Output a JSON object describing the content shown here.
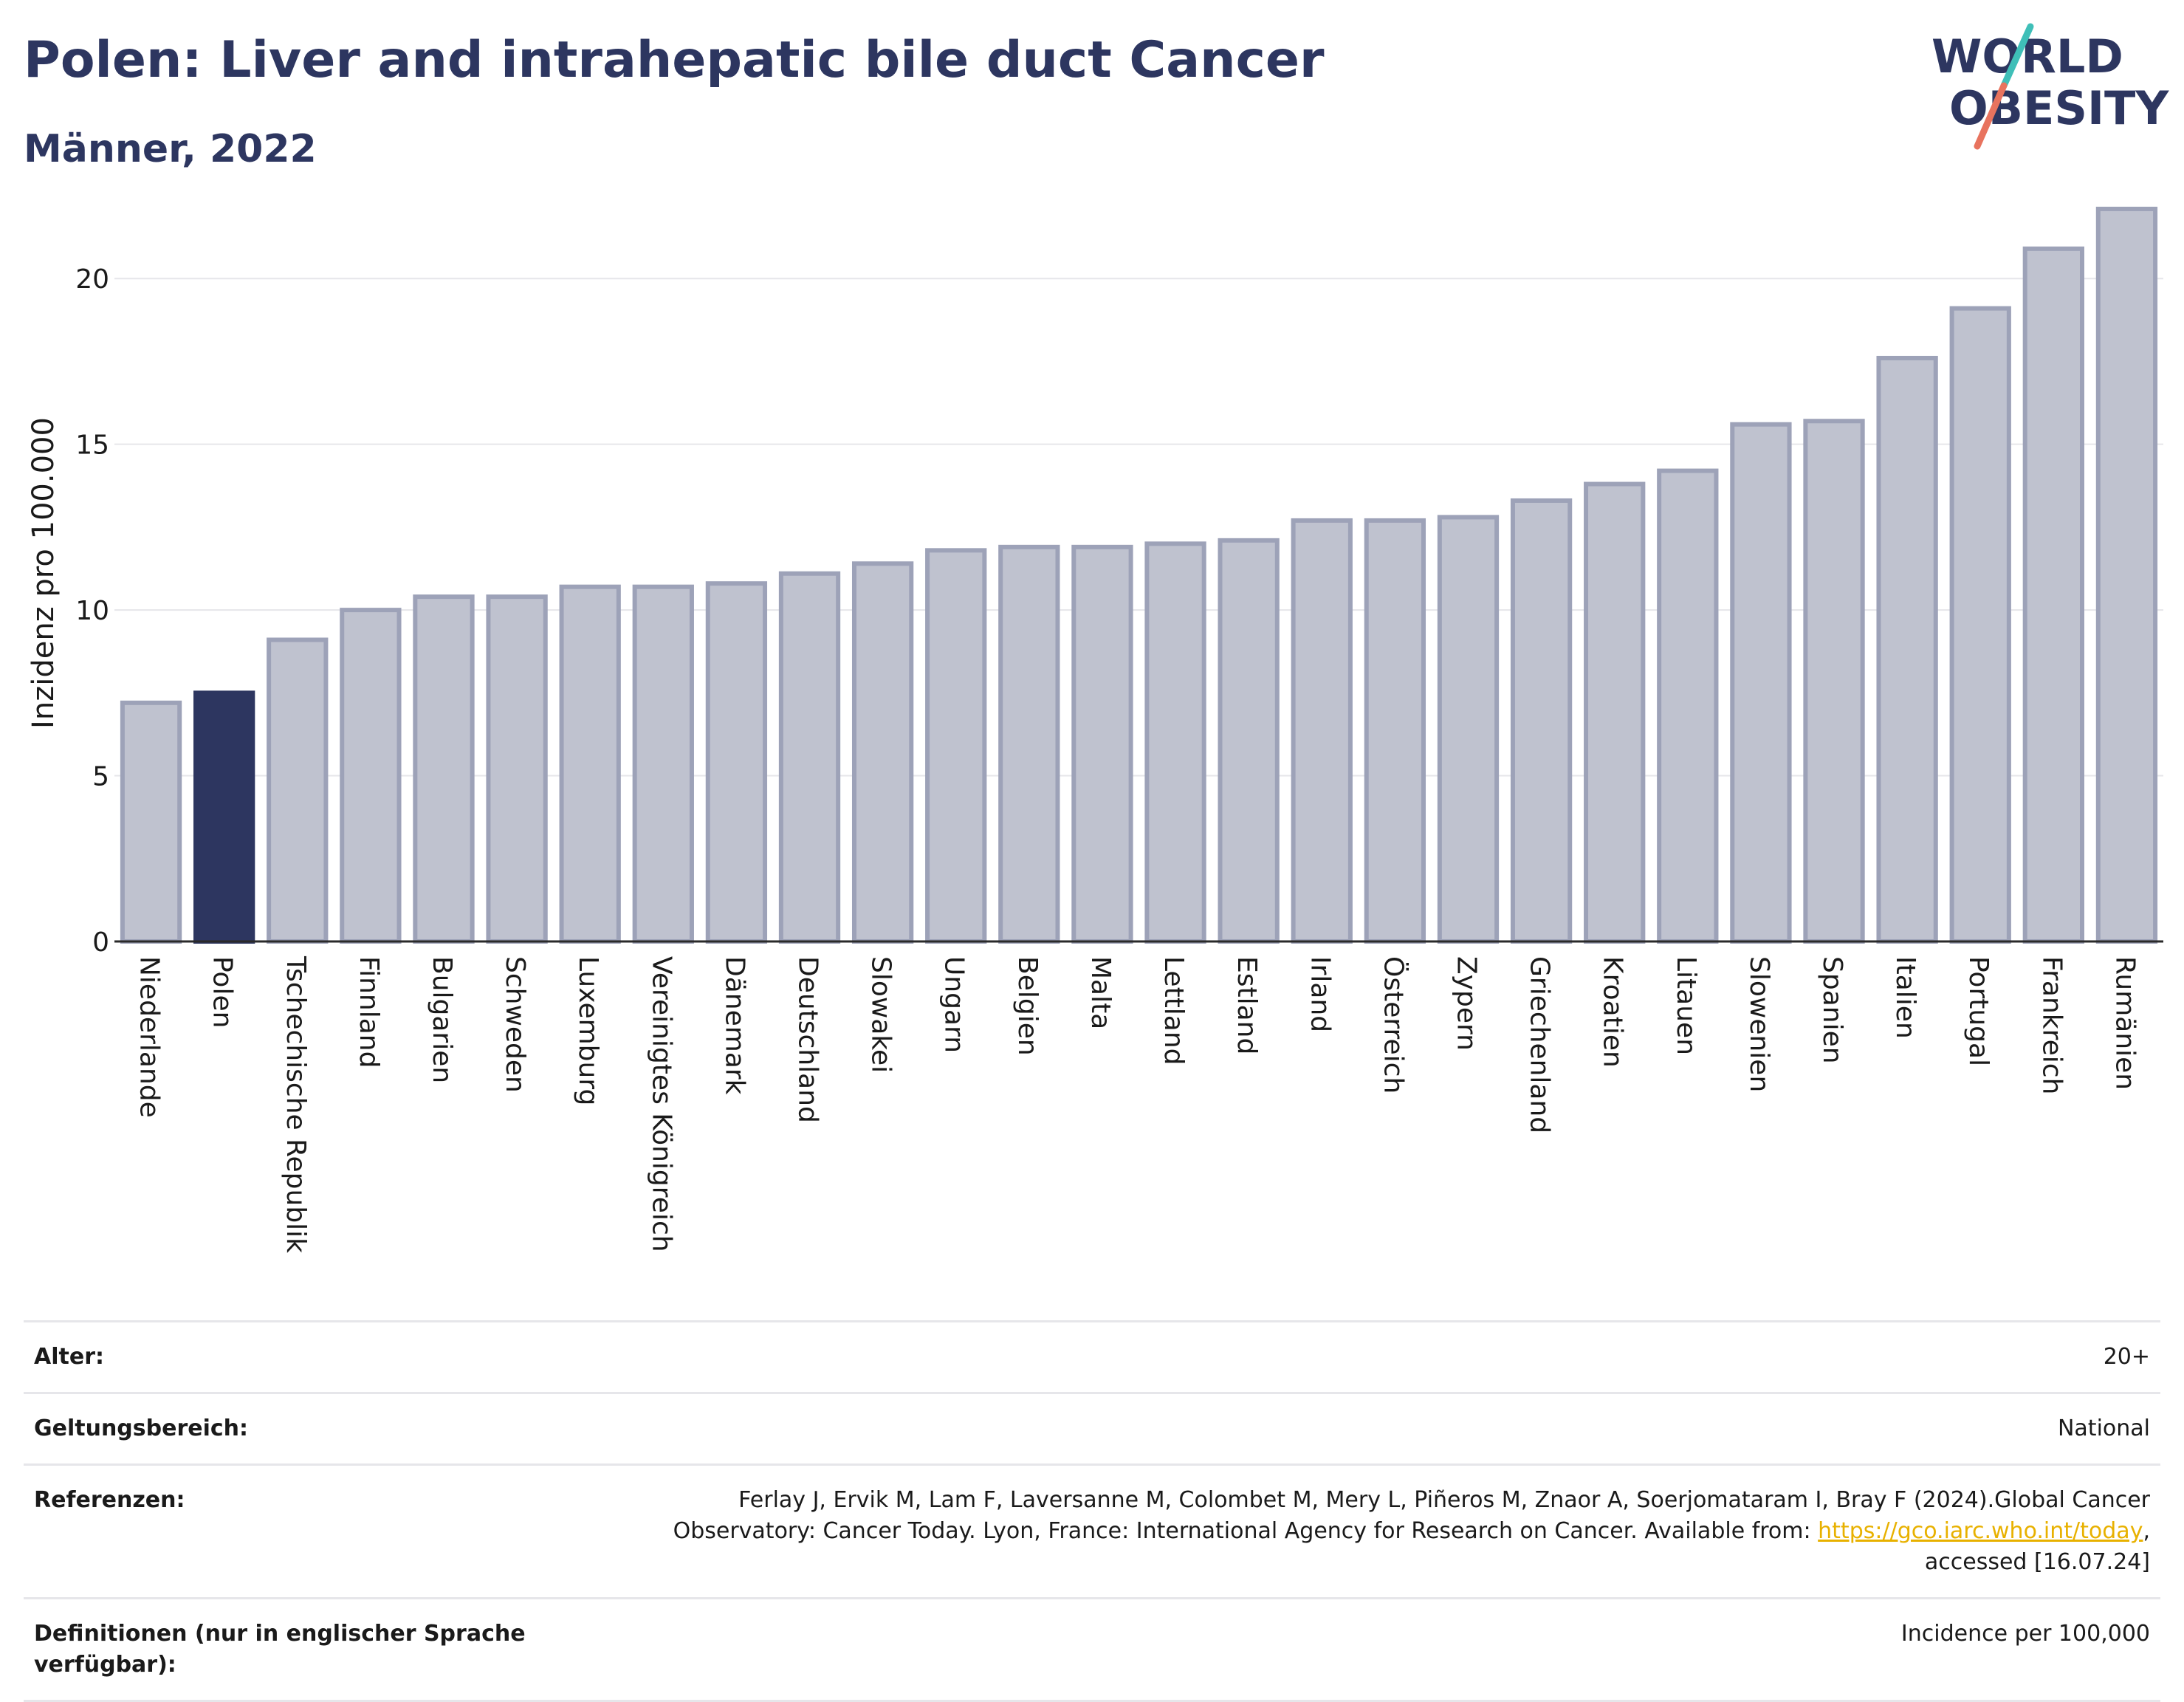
{
  "header": {
    "title": "Polen: Liver and intrahepatic bile duct Cancer",
    "subtitle": "Männer, 2022"
  },
  "logo": {
    "line1": "WORLD",
    "line2": "OBESITY",
    "accent_teal": "#3fbfb8",
    "accent_coral": "#e8735e"
  },
  "colors": {
    "highlight": "#2d3660",
    "bar": "#bfc2cf",
    "bar_border": "#9da2b8",
    "grid": "#e6e6ea"
  },
  "chart_data": {
    "type": "bar",
    "ylabel": "Inzidenz pro 100.000",
    "ylim": [
      0,
      22.5
    ],
    "yticks": [
      0,
      5,
      10,
      15,
      20
    ],
    "grid": true,
    "highlight": "Polen",
    "categories": [
      "Niederlande",
      "Polen",
      "Tschechische Republik",
      "Finnland",
      "Bulgarien",
      "Schweden",
      "Luxemburg",
      "Vereinigtes Königreich",
      "Dänemark",
      "Deutschland",
      "Slowakei",
      "Ungarn",
      "Belgien",
      "Malta",
      "Lettland",
      "Estland",
      "Irland",
      "Österreich",
      "Zypern",
      "Griechenland",
      "Kroatien",
      "Litauen",
      "Slowenien",
      "Spanien",
      "Italien",
      "Portugal",
      "Frankreich",
      "Rumänien"
    ],
    "values": [
      7.2,
      7.5,
      9.1,
      10.0,
      10.4,
      10.4,
      10.7,
      10.7,
      10.8,
      11.1,
      11.4,
      11.8,
      11.9,
      11.9,
      12.0,
      12.1,
      12.7,
      12.7,
      12.8,
      13.3,
      13.8,
      14.2,
      15.6,
      15.7,
      17.6,
      19.1,
      20.9,
      22.1
    ]
  },
  "meta": [
    {
      "label": "Alter:",
      "value": "20+"
    },
    {
      "label": "Geltungsbereich:",
      "value": "National"
    },
    {
      "label": "Referenzen:",
      "value_pre": "Ferlay J, Ervik M, Lam F, Laversanne M, Colombet M, Mery L, Piñeros M, Znaor A, Soerjomataram I, Bray F (2024).Global Cancer Observatory: Cancer Today. Lyon, France: International Agency for Research on Cancer. Available from: ",
      "link": "https://gco.iarc.who.int/today",
      "value_post": ", accessed [16.07.24]"
    },
    {
      "label": "Definitionen (nur in englischer Sprache verfügbar):",
      "value": "Incidence per 100,000"
    }
  ]
}
